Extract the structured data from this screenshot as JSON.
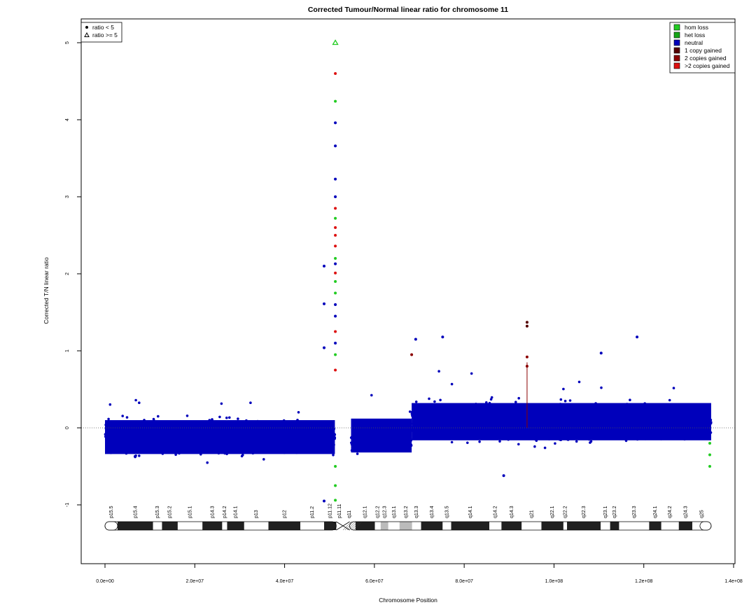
{
  "chart_data": {
    "type": "scatter",
    "title": "Corrected Tumour/Normal linear ratio for chromosome  11",
    "xlabel": "Chromosome Position",
    "ylabel": "Corrected T/N linear ratio",
    "xlim": [
      0,
      140000000
    ],
    "ylim": [
      -1.7,
      5.5
    ],
    "x_ticks": [
      0,
      20000000,
      40000000,
      60000000,
      80000000,
      100000000,
      120000000,
      140000000
    ],
    "x_tick_labels": [
      "0.0e+00",
      "2.0e+07",
      "4.0e+07",
      "6.0e+07",
      "8.0e+07",
      "1.0e+08",
      "1.2e+08",
      "1.4e+08"
    ],
    "y_ticks": [
      -1,
      0,
      1,
      2,
      3,
      4,
      5
    ],
    "y_tick_labels": [
      "-1",
      "0",
      "1",
      "2",
      "3",
      "4",
      "5"
    ],
    "reference_line_y": 0,
    "shape_legend": {
      "position": "top-left",
      "items": [
        {
          "label": "ratio < 5",
          "shape": "filled-circle"
        },
        {
          "label": "ratio >= 5",
          "shape": "open-triangle"
        }
      ]
    },
    "color_legend": {
      "position": "top-right",
      "items": [
        {
          "label": "hom loss",
          "color": "#22cc22"
        },
        {
          "label": "het loss",
          "color": "#16a516"
        },
        {
          "label": "neutral",
          "color": "#0000bb"
        },
        {
          "label": "1 copy gained",
          "color": "#550000"
        },
        {
          "label": "2 copies gained",
          "color": "#8b0000"
        },
        {
          "label": ">2 copies gained",
          "color": "#dd1111"
        }
      ]
    },
    "segments": [
      {
        "start": 0,
        "end": 51200000,
        "mean": -0.12,
        "spread": 0.2,
        "status": "neutral"
      },
      {
        "start": 54800000,
        "end": 68300000,
        "mean": -0.1,
        "spread": 0.2,
        "status": "neutral"
      },
      {
        "start": 68300000,
        "end": 135000000,
        "mean": 0.08,
        "spread": 0.22,
        "status": "neutral"
      }
    ],
    "notable_points": [
      {
        "x": 51300000,
        "y": 5.0,
        "status": "hom loss",
        "shape": "open-triangle"
      },
      {
        "x": 51300000,
        "y": 4.6,
        "status": ">2 copies gained"
      },
      {
        "x": 51300000,
        "y": 4.24,
        "status": "hom loss"
      },
      {
        "x": 51300000,
        "y": 3.96,
        "status": "neutral"
      },
      {
        "x": 51300000,
        "y": 3.66,
        "status": "neutral"
      },
      {
        "x": 51300000,
        "y": 3.23,
        "status": "neutral"
      },
      {
        "x": 51300000,
        "y": 3.0,
        "status": "neutral"
      },
      {
        "x": 51300000,
        "y": 2.85,
        "status": ">2 copies gained"
      },
      {
        "x": 51300000,
        "y": 2.72,
        "status": "hom loss"
      },
      {
        "x": 51300000,
        "y": 2.6,
        "status": ">2 copies gained"
      },
      {
        "x": 51300000,
        "y": 2.5,
        "status": ">2 copies gained"
      },
      {
        "x": 51300000,
        "y": 2.36,
        "status": ">2 copies gained"
      },
      {
        "x": 51300000,
        "y": 2.2,
        "status": "hom loss"
      },
      {
        "x": 51300000,
        "y": 2.13,
        "status": "neutral"
      },
      {
        "x": 51300000,
        "y": 2.01,
        "status": ">2 copies gained"
      },
      {
        "x": 51300000,
        "y": 1.9,
        "status": "hom loss"
      },
      {
        "x": 51300000,
        "y": 1.75,
        "status": "hom loss"
      },
      {
        "x": 51300000,
        "y": 1.6,
        "status": "neutral"
      },
      {
        "x": 51300000,
        "y": 1.45,
        "status": "neutral"
      },
      {
        "x": 51300000,
        "y": 1.25,
        "status": ">2 copies gained"
      },
      {
        "x": 51300000,
        "y": 1.1,
        "status": "neutral"
      },
      {
        "x": 51300000,
        "y": 0.95,
        "status": "hom loss"
      },
      {
        "x": 51300000,
        "y": 0.75,
        "status": ">2 copies gained"
      },
      {
        "x": 51300000,
        "y": -0.5,
        "status": "hom loss"
      },
      {
        "x": 51300000,
        "y": -0.75,
        "status": "hom loss"
      },
      {
        "x": 51300000,
        "y": -0.94,
        "status": "hom loss"
      },
      {
        "x": 48800000,
        "y": 2.1,
        "status": "neutral"
      },
      {
        "x": 48800000,
        "y": 1.61,
        "status": "neutral"
      },
      {
        "x": 48800000,
        "y": 1.04,
        "status": "neutral"
      },
      {
        "x": 48800000,
        "y": -0.95,
        "status": "neutral"
      },
      {
        "x": 94000000,
        "y": 1.37,
        "status": "1 copy gained"
      },
      {
        "x": 94000000,
        "y": 1.32,
        "status": "1 copy gained"
      },
      {
        "x": 94000000,
        "y": 0.92,
        "status": "2 copies gained"
      },
      {
        "x": 94000000,
        "y": 0.8,
        "status": "2 copies gained"
      },
      {
        "x": 68300000,
        "y": 0.95,
        "status": "2 copies gained"
      },
      {
        "x": 69200000,
        "y": 1.15,
        "status": "neutral"
      },
      {
        "x": 75200000,
        "y": 1.18,
        "status": "neutral"
      },
      {
        "x": 118500000,
        "y": 1.18,
        "status": "neutral"
      },
      {
        "x": 110500000,
        "y": 0.97,
        "status": "neutral"
      },
      {
        "x": 88800000,
        "y": -0.62,
        "status": "neutral"
      },
      {
        "x": 134700000,
        "y": -0.2,
        "status": "hom loss"
      },
      {
        "x": 134700000,
        "y": -0.35,
        "status": "hom loss"
      },
      {
        "x": 134700000,
        "y": -0.5,
        "status": "hom loss"
      }
    ],
    "ideogram": {
      "centromere_start": 51500000,
      "centromere_end": 54500000,
      "end": 135000000,
      "bands": [
        {
          "name": "p15.5",
          "start": 0,
          "end": 2800000,
          "stain": "gneg"
        },
        {
          "name": "p15.4",
          "start": 2800000,
          "end": 10700000,
          "stain": "gpos50"
        },
        {
          "name": "p15.3",
          "start": 10700000,
          "end": 12700000,
          "stain": "gneg"
        },
        {
          "name": "p15.2",
          "start": 12700000,
          "end": 16200000,
          "stain": "gpos50"
        },
        {
          "name": "p15.1",
          "start": 16200000,
          "end": 21700000,
          "stain": "gneg"
        },
        {
          "name": "p14.3",
          "start": 21700000,
          "end": 26100000,
          "stain": "gpos100"
        },
        {
          "name": "p14.2",
          "start": 26100000,
          "end": 27200000,
          "stain": "gneg"
        },
        {
          "name": "p14.1",
          "start": 27200000,
          "end": 31000000,
          "stain": "gpos75"
        },
        {
          "name": "p13",
          "start": 31000000,
          "end": 36400000,
          "stain": "gneg"
        },
        {
          "name": "p12",
          "start": 36400000,
          "end": 43500000,
          "stain": "gpos100"
        },
        {
          "name": "p11.2",
          "start": 43500000,
          "end": 48800000,
          "stain": "gneg"
        },
        {
          "name": "p11.12",
          "start": 48800000,
          "end": 51500000,
          "stain": "gpos75"
        },
        {
          "name": "p11.11",
          "start": 51500000,
          "end": 53000000,
          "stain": "acen"
        },
        {
          "name": "q11",
          "start": 53000000,
          "end": 55800000,
          "stain": "gvar"
        },
        {
          "name": "q12.1",
          "start": 55800000,
          "end": 60100000,
          "stain": "gpos75"
        },
        {
          "name": "q12.2",
          "start": 60100000,
          "end": 61400000,
          "stain": "gneg"
        },
        {
          "name": "q12.3",
          "start": 61400000,
          "end": 63100000,
          "stain": "gpos25"
        },
        {
          "name": "q13.1",
          "start": 63100000,
          "end": 65600000,
          "stain": "gneg"
        },
        {
          "name": "q13.2",
          "start": 65600000,
          "end": 68400000,
          "stain": "gpos25"
        },
        {
          "name": "q13.3",
          "start": 68400000,
          "end": 70400000,
          "stain": "gneg"
        },
        {
          "name": "q13.4",
          "start": 70400000,
          "end": 75200000,
          "stain": "gpos50"
        },
        {
          "name": "q13.5",
          "start": 75200000,
          "end": 77100000,
          "stain": "gneg"
        },
        {
          "name": "q14.1",
          "start": 77100000,
          "end": 85600000,
          "stain": "gpos100"
        },
        {
          "name": "q14.2",
          "start": 85600000,
          "end": 88300000,
          "stain": "gneg"
        },
        {
          "name": "q14.3",
          "start": 88300000,
          "end": 92800000,
          "stain": "gpos100"
        },
        {
          "name": "q21",
          "start": 92800000,
          "end": 97200000,
          "stain": "gneg"
        },
        {
          "name": "q22.1",
          "start": 97200000,
          "end": 102100000,
          "stain": "gpos100"
        },
        {
          "name": "q22.2",
          "start": 102100000,
          "end": 102900000,
          "stain": "gneg"
        },
        {
          "name": "q22.3",
          "start": 102900000,
          "end": 110400000,
          "stain": "gpos100"
        },
        {
          "name": "q23.1",
          "start": 110400000,
          "end": 112500000,
          "stain": "gneg"
        },
        {
          "name": "q23.2",
          "start": 112500000,
          "end": 114500000,
          "stain": "gpos50"
        },
        {
          "name": "q23.3",
          "start": 114500000,
          "end": 121200000,
          "stain": "gneg"
        },
        {
          "name": "q24.1",
          "start": 121200000,
          "end": 123900000,
          "stain": "gpos50"
        },
        {
          "name": "q24.2",
          "start": 123900000,
          "end": 127800000,
          "stain": "gneg"
        },
        {
          "name": "q24.3",
          "start": 127800000,
          "end": 130800000,
          "stain": "gpos50"
        },
        {
          "name": "q25",
          "start": 130800000,
          "end": 135000000,
          "stain": "gneg"
        }
      ]
    }
  }
}
